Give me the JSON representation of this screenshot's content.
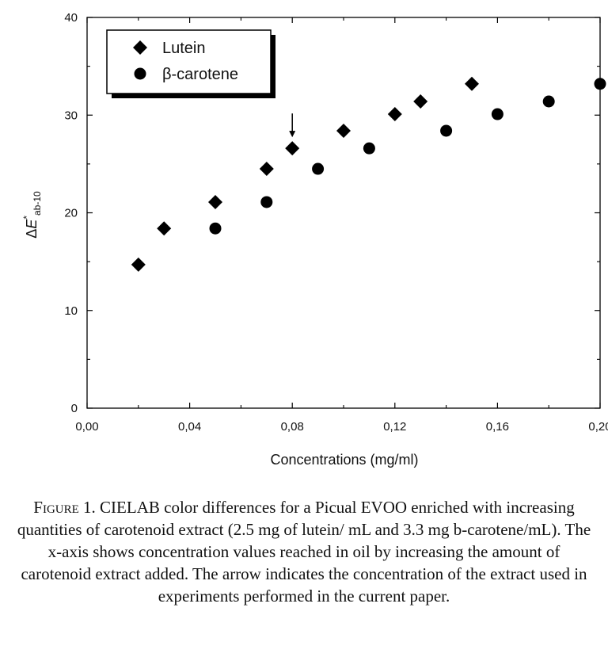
{
  "chart_data": {
    "type": "scatter",
    "xlabel": "Concentrations (mg/ml)",
    "ylabel": "ΔE*ab-10",
    "ylabel_parts": {
      "delta": "Δ",
      "main": "E",
      "star": "*",
      "sub": "ab-10"
    },
    "xlim": [
      0,
      0.2
    ],
    "ylim": [
      0,
      40
    ],
    "x_ticks": [
      {
        "value": 0.0,
        "label": "0,00"
      },
      {
        "value": 0.04,
        "label": "0,04"
      },
      {
        "value": 0.08,
        "label": "0,08"
      },
      {
        "value": 0.12,
        "label": "0,12"
      },
      {
        "value": 0.16,
        "label": "0,16"
      },
      {
        "value": 0.2,
        "label": "0,20"
      }
    ],
    "y_ticks": [
      {
        "value": 0,
        "label": "0"
      },
      {
        "value": 10,
        "label": "10"
      },
      {
        "value": 20,
        "label": "20"
      },
      {
        "value": 30,
        "label": "30"
      },
      {
        "value": 40,
        "label": "40"
      }
    ],
    "legend_position": "top-left",
    "series": [
      {
        "name": "Lutein",
        "marker": "diamond",
        "color": "#000000",
        "x": [
          0.02,
          0.03,
          0.05,
          0.07,
          0.08,
          0.1,
          0.12,
          0.13,
          0.15
        ],
        "y": [
          14.7,
          18.4,
          21.1,
          24.5,
          26.6,
          28.4,
          30.1,
          31.4,
          33.2
        ]
      },
      {
        "name": "β-carotene",
        "marker": "circle",
        "color": "#000000",
        "x": [
          0.05,
          0.07,
          0.09,
          0.11,
          0.14,
          0.16,
          0.18,
          0.2
        ],
        "y": [
          18.4,
          21.1,
          24.5,
          26.6,
          28.4,
          30.1,
          31.4,
          33.2
        ]
      }
    ],
    "annotations": [
      {
        "type": "arrow",
        "x": 0.08,
        "y": 26.6,
        "note": "down-arrow above point"
      }
    ]
  },
  "caption": {
    "label": "Figure 1.",
    "text": "CIELAB color differences for a Picual EVOO enriched with increasing quantities of carotenoid extract (2.5 mg of lutein/ mL and 3.3 mg b-carotene/mL). The x-axis shows concentration values reached in oil by increasing the amount of carotenoid extract added. The arrow indicates the concentration of the extract used in experiments performed in the current paper."
  }
}
